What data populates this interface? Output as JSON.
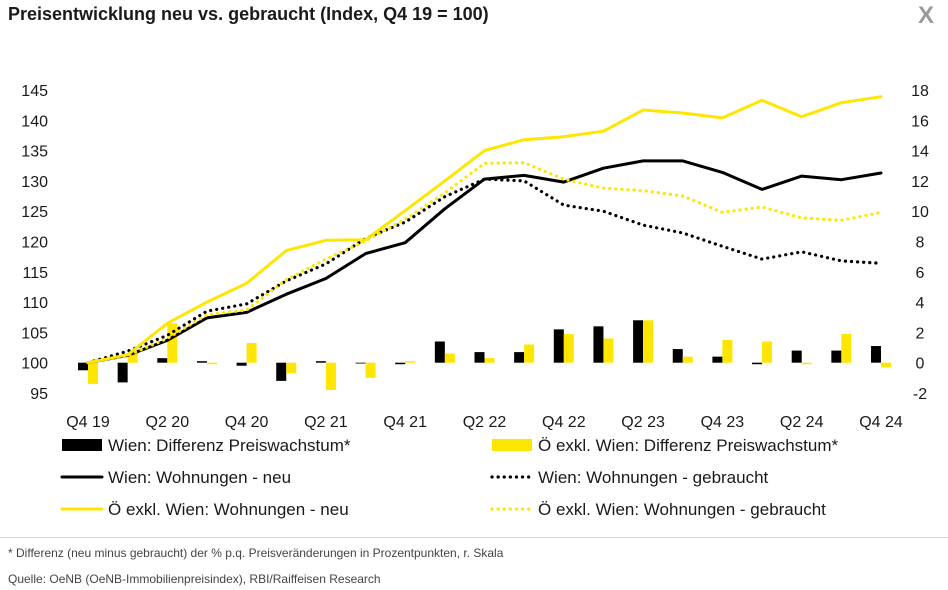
{
  "header": {
    "title": "Preisentwicklung neu vs. gebraucht (Index, Q4 19 = 100)",
    "close_label": "X"
  },
  "footer": {
    "note": "* Differenz (neu minus gebraucht) der % p.q. Preisveränderungen in Prozentpunkten, r. Skala",
    "source": "Quelle: OeNB (OeNB-Immobilienpreisindex), RBI/Raiffeisen Research"
  },
  "colors": {
    "black": "#000000",
    "yellow": "#FFE600"
  },
  "chart_data": {
    "type": "line",
    "title": "Preisentwicklung neu vs. gebraucht (Index, Q4 19 = 100)",
    "x": [
      "Q4 19",
      "Q1 20",
      "Q2 20",
      "Q3 20",
      "Q4 20",
      "Q1 21",
      "Q2 21",
      "Q3 21",
      "Q4 21",
      "Q1 22",
      "Q2 22",
      "Q3 22",
      "Q4 22",
      "Q1 23",
      "Q2 23",
      "Q3 23",
      "Q4 23",
      "Q1 24",
      "Q2 24",
      "Q3 24",
      "Q4 24"
    ],
    "x_tick_labels": [
      "Q4 19",
      "Q2 20",
      "Q4 20",
      "Q2 21",
      "Q4 21",
      "Q2 22",
      "Q4 22",
      "Q2 23",
      "Q4 23",
      "Q2 24",
      "Q4 24"
    ],
    "ylim_left": [
      95,
      145
    ],
    "yticks_left": [
      95,
      100,
      105,
      110,
      115,
      120,
      125,
      130,
      135,
      140,
      145
    ],
    "ylim_right": [
      -2,
      18
    ],
    "yticks_right": [
      -2,
      0,
      2,
      4,
      6,
      8,
      10,
      12,
      14,
      16,
      18
    ],
    "grid": false,
    "legend_position": "bottom",
    "series": [
      {
        "name": "Wien: Differenz Preiswachstum*",
        "kind": "bar",
        "axis": "right",
        "color": "#000000",
        "values": [
          -0.5,
          -1.3,
          0.3,
          0.1,
          -0.2,
          -1.2,
          0.1,
          0.0,
          -0.1,
          1.4,
          0.7,
          0.7,
          2.2,
          2.4,
          2.8,
          0.9,
          0.4,
          -0.1,
          0.8,
          0.8,
          1.1
        ]
      },
      {
        "name": "Ö exkl. Wien: Differenz Preiswachstum*",
        "kind": "bar",
        "axis": "right",
        "color": "#FFE600",
        "values": [
          -1.4,
          0.6,
          2.6,
          -0.1,
          1.3,
          -0.7,
          -1.8,
          -1.0,
          0.1,
          0.6,
          0.3,
          1.2,
          1.9,
          1.6,
          2.8,
          0.4,
          1.5,
          1.4,
          -0.1,
          1.9,
          -0.3
        ]
      },
      {
        "name": "Wien: Wohnungen - neu",
        "kind": "line",
        "style": "solid",
        "axis": "left",
        "color": "#000000",
        "values": [
          100.0,
          101.2,
          103.7,
          107.4,
          108.3,
          111.3,
          113.9,
          118.0,
          119.8,
          125.4,
          130.3,
          130.9,
          129.8,
          132.1,
          133.3,
          133.3,
          131.4,
          128.6,
          130.8,
          130.2,
          131.3
        ]
      },
      {
        "name": "Wien: Wohnungen - gebraucht",
        "kind": "line",
        "style": "dotted",
        "axis": "left",
        "color": "#000000",
        "values": [
          100.0,
          101.9,
          104.5,
          108.5,
          109.7,
          113.5,
          116.3,
          120.5,
          123.2,
          127.4,
          130.3,
          130.0,
          126.0,
          125.0,
          122.7,
          121.4,
          119.2,
          117.1,
          118.3,
          116.8,
          116.4
        ]
      },
      {
        "name": "Ö exkl. Wien: Wohnungen - neu",
        "kind": "line",
        "style": "solid",
        "axis": "left",
        "color": "#FFE600",
        "values": [
          100.0,
          101.3,
          106.5,
          110.0,
          113.1,
          118.5,
          120.2,
          120.3,
          125.1,
          130.0,
          135.0,
          136.8,
          137.3,
          138.2,
          141.7,
          141.2,
          140.4,
          143.3,
          140.6,
          142.9,
          143.9
        ]
      },
      {
        "name": "Ö exkl. Wien: Wohnungen - gebraucht",
        "kind": "line",
        "style": "dotted",
        "axis": "left",
        "color": "#FFE600",
        "values": [
          100.0,
          101.2,
          104.0,
          107.9,
          108.7,
          113.7,
          117.1,
          120.1,
          123.7,
          128.0,
          132.9,
          133.0,
          130.3,
          128.8,
          128.4,
          127.5,
          124.8,
          125.7,
          123.9,
          123.5,
          124.8
        ]
      }
    ]
  }
}
